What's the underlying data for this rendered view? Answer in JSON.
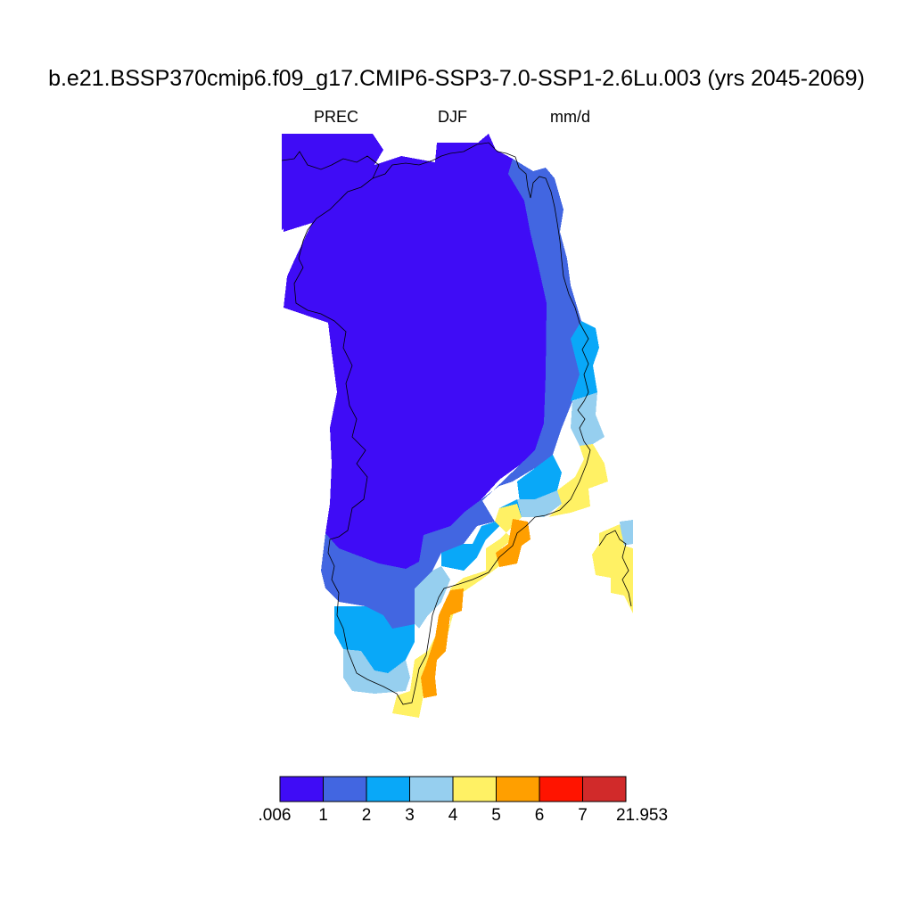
{
  "title": "b.e21.BSSP370cmip6.f09_g17.CMIP6-SSP3-7.0-SSP1-2.6Lu.003 (yrs 2045-2069)",
  "subtitle_left": "PREC",
  "subtitle_center": "DJF",
  "subtitle_right": "mm/d",
  "colorbar": {
    "colors": [
      "#3f0cf6",
      "#4266e1",
      "#09a8f8",
      "#96cfef",
      "#fff164",
      "#ff9f00",
      "#ff1400",
      "#d12a2a"
    ],
    "labels": [
      ".006",
      "1",
      "2",
      "3",
      "4",
      "5",
      "6",
      "7",
      "21.953"
    ]
  }
}
